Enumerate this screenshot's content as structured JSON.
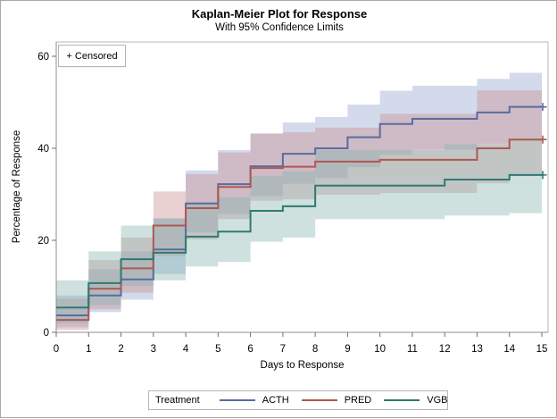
{
  "titles": {
    "title": "Kaplan-Meier Plot for Response",
    "subtitle": "With 95% Confidence Limits"
  },
  "inset": {
    "label": "+ Censored"
  },
  "legend": {
    "title": "Treatment",
    "items": [
      {
        "label": "ACTH",
        "color": "#5a6ca0"
      },
      {
        "label": "PRED",
        "color": "#b05752"
      },
      {
        "label": "VGB",
        "color": "#2e7a71"
      }
    ]
  },
  "axes": {
    "x_label": "Days to Response",
    "y_label": "Percentage of Response",
    "frame_color": "#b9b9b9",
    "axis_color": "#8f8f8f",
    "tick_color": "#6e6e6e",
    "tick_label_color": "#000000"
  },
  "chart_data": {
    "type": "line",
    "subtype": "kaplan-meier-step",
    "title": "Kaplan-Meier Plot for Response",
    "subtitle": "With 95% Confidence Limits",
    "xlabel": "Days to Response",
    "ylabel": "Percentage of Response",
    "xlim": [
      0,
      15.2
    ],
    "ylim": [
      0,
      63
    ],
    "xticks": [
      0,
      1,
      2,
      3,
      4,
      5,
      6,
      7,
      8,
      9,
      10,
      11,
      12,
      13,
      14,
      15
    ],
    "yticks": [
      0,
      20,
      40,
      60
    ],
    "grid": false,
    "legend_position": "bottom",
    "band_opacity": 0.4,
    "censor_marker": "+",
    "series": [
      {
        "name": "ACTH",
        "color": "#5a6ca0",
        "band_color": "#91a3cd",
        "days": [
          0,
          1,
          2,
          3,
          4,
          5,
          6,
          7,
          8,
          9,
          10,
          11,
          13,
          14
        ],
        "values": [
          3.7,
          8,
          11.5,
          18,
          28,
          32.2,
          36.1,
          38.8,
          40,
          42.4,
          45.3,
          46.4,
          47.8,
          49
        ],
        "upper": [
          8,
          13.7,
          17.6,
          24.8,
          35.2,
          39.6,
          43.2,
          45.6,
          46.8,
          49.5,
          52.5,
          53.6,
          55.1,
          56.4
        ],
        "lower": [
          1.1,
          4.4,
          7.1,
          12.7,
          21.7,
          25.7,
          29.6,
          32.3,
          33.5,
          35.9,
          38.6,
          39.7,
          41,
          42.2
        ],
        "censored_days": [
          15
        ]
      },
      {
        "name": "PRED",
        "color": "#b05752",
        "band_color": "#c98b8f",
        "days": [
          0,
          1,
          2,
          3,
          4,
          5,
          6,
          7,
          8,
          10,
          13,
          14
        ],
        "values": [
          2.7,
          9.5,
          13.9,
          23.2,
          27,
          31.6,
          35.7,
          36,
          37.1,
          37.5,
          40,
          41.9
        ],
        "upper": [
          7.3,
          15.7,
          20.6,
          30.6,
          34.4,
          39.1,
          43.2,
          43.5,
          44.5,
          47.5,
          52.6,
          52.6
        ],
        "lower": [
          0.5,
          5,
          8.6,
          16.6,
          20.2,
          24.6,
          28.6,
          28.9,
          29.9,
          30.3,
          32.4,
          34.3
        ],
        "censored_days": [
          15
        ]
      },
      {
        "name": "VGB",
        "color": "#2e7a71",
        "band_color": "#85b5ad",
        "days": [
          0,
          1,
          2,
          3,
          4,
          5,
          6,
          7,
          8,
          12,
          14
        ],
        "values": [
          5.4,
          10.7,
          15.9,
          17.3,
          20.8,
          21.9,
          26.4,
          27.4,
          31.9,
          33.2,
          34.2
        ],
        "upper": [
          11.3,
          17.6,
          23.2,
          24.7,
          28.3,
          29.4,
          34,
          35,
          39.6,
          40.9,
          42.2
        ],
        "lower": [
          2,
          5.9,
          10.1,
          11.3,
          14.3,
          15.3,
          19.7,
          20.6,
          24.6,
          25.4,
          25.9
        ],
        "censored_days": [
          15
        ]
      }
    ]
  }
}
